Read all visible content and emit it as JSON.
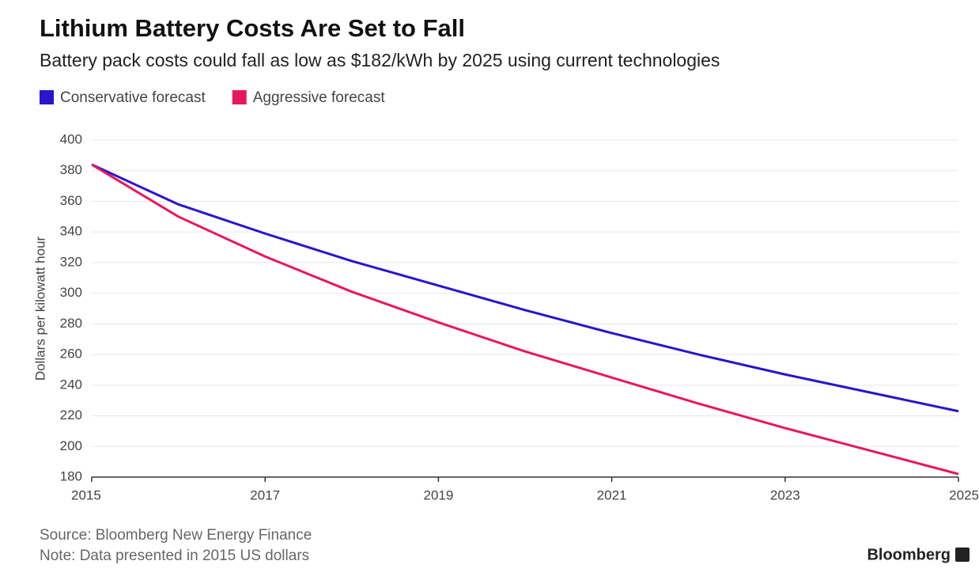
{
  "chart_data": {
    "type": "line",
    "title": "Lithium Battery Costs Are Set to Fall",
    "subtitle": "Battery pack costs could fall as low as $182/kWh by 2025 using current technologies",
    "y_label": "Dollars per kilowatt hour",
    "x": [
      2015,
      2016,
      2017,
      2018,
      2019,
      2020,
      2021,
      2022,
      2023,
      2024,
      2025
    ],
    "series": [
      {
        "name": "Conservative forecast",
        "color": "#2a14cc",
        "values": [
          384,
          358,
          339,
          321,
          305,
          289,
          274,
          260,
          247,
          235,
          223
        ]
      },
      {
        "name": "Aggressive forecast",
        "color": "#e8175d",
        "values": [
          384,
          350,
          324,
          301,
          281,
          262,
          245,
          228,
          212,
          197,
          182
        ]
      }
    ],
    "xlim": [
      2015,
      2025
    ],
    "xticks": [
      2015,
      2017,
      2019,
      2021,
      2023,
      2025
    ],
    "ylim": [
      180,
      400
    ],
    "yticks": [
      180,
      200,
      220,
      240,
      260,
      280,
      300,
      320,
      340,
      360,
      380,
      400
    ],
    "grid": true,
    "legend": "top-left",
    "source": "Source: Bloomberg New Energy Finance",
    "note": "Note: Data presented in 2015 US dollars",
    "brand": "Bloomberg"
  }
}
